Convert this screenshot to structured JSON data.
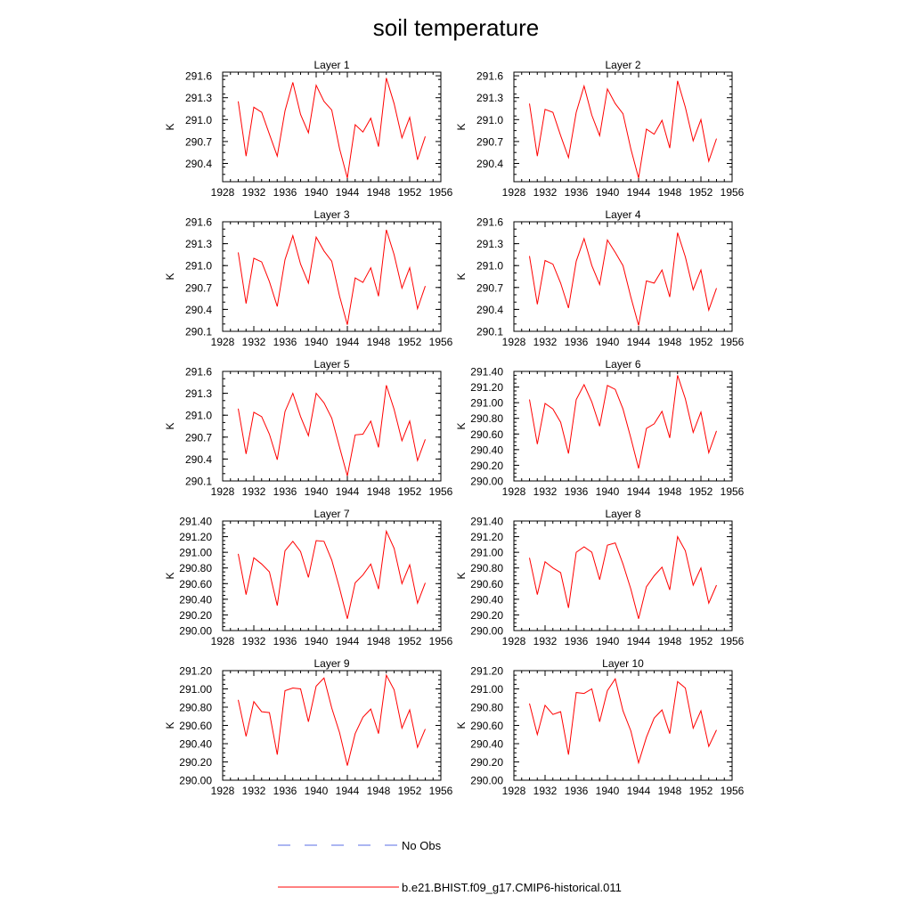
{
  "title": "soil temperature",
  "colors": {
    "model": "#ff0000",
    "obs": "#5a6ee6",
    "axis": "#000000"
  },
  "legend": {
    "obs_label": "No Obs",
    "model_label": "b.e21.BHIST.f09_g17.CMIP6-historical.011"
  },
  "chart_data": [
    {
      "type": "line",
      "title": "Layer 1",
      "xlabel": "",
      "ylabel": "K",
      "xlim": [
        1928,
        1956
      ],
      "xticks": [
        1928,
        1932,
        1936,
        1940,
        1944,
        1948,
        1952,
        1956
      ],
      "ylim": [
        290.15,
        291.65
      ],
      "yticks": [
        "291.6",
        "291.3",
        "291.0",
        "290.7",
        "290.4"
      ],
      "series": [
        {
          "x": [
            1930,
            1931,
            1932,
            1933,
            1934,
            1935,
            1936,
            1937,
            1938,
            1939,
            1940,
            1941,
            1942,
            1943,
            1944,
            1945,
            1946,
            1947,
            1948,
            1949,
            1950,
            1951,
            1952,
            1953,
            1954
          ],
          "values": [
            291.25,
            290.5,
            291.17,
            291.1,
            290.8,
            290.5,
            291.12,
            291.51,
            291.07,
            290.82,
            291.47,
            291.25,
            291.13,
            290.6,
            290.2,
            290.93,
            290.83,
            291.02,
            290.63,
            291.57,
            291.22,
            290.75,
            291.03,
            290.45,
            290.77
          ]
        }
      ]
    },
    {
      "type": "line",
      "title": "Layer 2",
      "xlabel": "",
      "ylabel": "K",
      "xlim": [
        1928,
        1956
      ],
      "xticks": [
        1928,
        1932,
        1936,
        1940,
        1944,
        1948,
        1952,
        1956
      ],
      "ylim": [
        290.15,
        291.65
      ],
      "yticks": [
        "291.6",
        "291.3",
        "291.0",
        "290.7",
        "290.4"
      ],
      "series": [
        {
          "x": [
            1930,
            1931,
            1932,
            1933,
            1934,
            1935,
            1936,
            1937,
            1938,
            1939,
            1940,
            1941,
            1942,
            1943,
            1944,
            1945,
            1946,
            1947,
            1948,
            1949,
            1950,
            1951,
            1952,
            1953,
            1954
          ],
          "values": [
            291.22,
            290.5,
            291.14,
            291.1,
            290.78,
            290.48,
            291.1,
            291.46,
            291.06,
            290.78,
            291.42,
            291.22,
            291.08,
            290.6,
            290.2,
            290.87,
            290.8,
            290.99,
            290.61,
            291.53,
            291.17,
            290.71,
            291.0,
            290.43,
            290.74
          ]
        }
      ]
    },
    {
      "type": "line",
      "title": "Layer 3",
      "xlabel": "",
      "ylabel": "K",
      "xlim": [
        1928,
        1956
      ],
      "xticks": [
        1928,
        1932,
        1936,
        1940,
        1944,
        1948,
        1952,
        1956
      ],
      "ylim": [
        290.1,
        291.6
      ],
      "yticks": [
        "291.6",
        "291.3",
        "291.0",
        "290.7",
        "290.4",
        "290.1"
      ],
      "series": [
        {
          "x": [
            1930,
            1931,
            1932,
            1933,
            1934,
            1935,
            1936,
            1937,
            1938,
            1939,
            1940,
            1941,
            1942,
            1943,
            1944,
            1945,
            1946,
            1947,
            1948,
            1949,
            1950,
            1951,
            1952,
            1953,
            1954
          ],
          "values": [
            291.18,
            290.48,
            291.1,
            291.05,
            290.78,
            290.44,
            291.08,
            291.41,
            291.02,
            290.76,
            291.39,
            291.2,
            291.06,
            290.58,
            290.19,
            290.83,
            290.77,
            290.97,
            290.58,
            291.49,
            291.15,
            290.69,
            290.97,
            290.41,
            290.72
          ]
        }
      ]
    },
    {
      "type": "line",
      "title": "Layer 4",
      "xlabel": "",
      "ylabel": "K",
      "xlim": [
        1928,
        1956
      ],
      "xticks": [
        1928,
        1932,
        1936,
        1940,
        1944,
        1948,
        1952,
        1956
      ],
      "ylim": [
        290.1,
        291.6
      ],
      "yticks": [
        "291.6",
        "291.3",
        "291.0",
        "290.7",
        "290.4",
        "290.1"
      ],
      "series": [
        {
          "x": [
            1930,
            1931,
            1932,
            1933,
            1934,
            1935,
            1936,
            1937,
            1938,
            1939,
            1940,
            1941,
            1942,
            1943,
            1944,
            1945,
            1946,
            1947,
            1948,
            1949,
            1950,
            1951,
            1952,
            1953,
            1954
          ],
          "values": [
            291.13,
            290.47,
            291.07,
            291.02,
            290.76,
            290.42,
            291.06,
            291.37,
            291.0,
            290.74,
            291.35,
            291.18,
            291.0,
            290.57,
            290.18,
            290.79,
            290.76,
            290.94,
            290.57,
            291.45,
            291.12,
            290.67,
            290.94,
            290.39,
            290.69
          ]
        }
      ]
    },
    {
      "type": "line",
      "title": "Layer 5",
      "xlabel": "",
      "ylabel": "K",
      "xlim": [
        1928,
        1956
      ],
      "xticks": [
        1928,
        1932,
        1936,
        1940,
        1944,
        1948,
        1952,
        1956
      ],
      "ylim": [
        290.1,
        291.6
      ],
      "yticks": [
        "291.6",
        "291.3",
        "291.0",
        "290.7",
        "290.4",
        "290.1"
      ],
      "series": [
        {
          "x": [
            1930,
            1931,
            1932,
            1933,
            1934,
            1935,
            1936,
            1937,
            1938,
            1939,
            1940,
            1941,
            1942,
            1943,
            1944,
            1945,
            1946,
            1947,
            1948,
            1949,
            1950,
            1951,
            1952,
            1953,
            1954
          ],
          "values": [
            291.09,
            290.47,
            291.04,
            290.98,
            290.74,
            290.39,
            291.05,
            291.3,
            290.98,
            290.72,
            291.3,
            291.17,
            290.96,
            290.56,
            290.17,
            290.73,
            290.74,
            290.92,
            290.56,
            291.41,
            291.08,
            290.65,
            290.92,
            290.38,
            290.67
          ]
        }
      ]
    },
    {
      "type": "line",
      "title": "Layer 6",
      "xlabel": "",
      "ylabel": "K",
      "xlim": [
        1928,
        1956
      ],
      "xticks": [
        1928,
        1932,
        1936,
        1940,
        1944,
        1948,
        1952,
        1956
      ],
      "ylim": [
        290.0,
        291.4
      ],
      "yticks": [
        "291.40",
        "291.20",
        "291.00",
        "290.80",
        "290.60",
        "290.40",
        "290.20",
        "290.00"
      ],
      "series": [
        {
          "x": [
            1930,
            1931,
            1932,
            1933,
            1934,
            1935,
            1936,
            1937,
            1938,
            1939,
            1940,
            1941,
            1942,
            1943,
            1944,
            1945,
            1946,
            1947,
            1948,
            1949,
            1950,
            1951,
            1952,
            1953,
            1954
          ],
          "values": [
            291.04,
            290.47,
            290.99,
            290.92,
            290.75,
            290.35,
            291.04,
            291.23,
            291.01,
            290.7,
            291.22,
            291.17,
            290.92,
            290.55,
            290.16,
            290.67,
            290.73,
            290.89,
            290.55,
            291.35,
            291.05,
            290.62,
            290.88,
            290.36,
            290.64
          ]
        }
      ]
    },
    {
      "type": "line",
      "title": "Layer 7",
      "xlabel": "",
      "ylabel": "K",
      "xlim": [
        1928,
        1956
      ],
      "xticks": [
        1928,
        1932,
        1936,
        1940,
        1944,
        1948,
        1952,
        1956
      ],
      "ylim": [
        290.0,
        291.4
      ],
      "yticks": [
        "291.40",
        "291.20",
        "291.00",
        "290.80",
        "290.60",
        "290.40",
        "290.20",
        "290.00"
      ],
      "series": [
        {
          "x": [
            1930,
            1931,
            1932,
            1933,
            1934,
            1935,
            1936,
            1937,
            1938,
            1939,
            1940,
            1941,
            1942,
            1943,
            1944,
            1945,
            1946,
            1947,
            1948,
            1949,
            1950,
            1951,
            1952,
            1953,
            1954
          ],
          "values": [
            290.98,
            290.46,
            290.93,
            290.85,
            290.75,
            290.32,
            291.02,
            291.14,
            291.01,
            290.68,
            291.15,
            291.14,
            290.9,
            290.54,
            290.15,
            290.61,
            290.71,
            290.85,
            290.53,
            291.27,
            291.05,
            290.6,
            290.84,
            290.35,
            290.61
          ]
        }
      ]
    },
    {
      "type": "line",
      "title": "Layer 8",
      "xlabel": "",
      "ylabel": "K",
      "xlim": [
        1928,
        1956
      ],
      "xticks": [
        1928,
        1932,
        1936,
        1940,
        1944,
        1948,
        1952,
        1956
      ],
      "ylim": [
        290.0,
        291.4
      ],
      "yticks": [
        "291.40",
        "291.20",
        "291.00",
        "290.80",
        "290.60",
        "290.40",
        "290.20",
        "290.00"
      ],
      "series": [
        {
          "x": [
            1930,
            1931,
            1932,
            1933,
            1934,
            1935,
            1936,
            1937,
            1938,
            1939,
            1940,
            1941,
            1942,
            1943,
            1944,
            1945,
            1946,
            1947,
            1948,
            1949,
            1950,
            1951,
            1952,
            1953,
            1954
          ],
          "values": [
            290.93,
            290.46,
            290.88,
            290.8,
            290.74,
            290.29,
            291.0,
            291.07,
            291.0,
            290.65,
            291.09,
            291.12,
            290.85,
            290.53,
            290.15,
            290.56,
            290.7,
            290.81,
            290.52,
            291.2,
            291.02,
            290.58,
            290.8,
            290.35,
            290.58
          ]
        }
      ]
    },
    {
      "type": "line",
      "title": "Layer 9",
      "xlabel": "",
      "ylabel": "K",
      "xlim": [
        1928,
        1956
      ],
      "xticks": [
        1928,
        1932,
        1936,
        1940,
        1944,
        1948,
        1952,
        1956
      ],
      "ylim": [
        290.0,
        291.2
      ],
      "yticks": [
        "291.20",
        "291.00",
        "290.80",
        "290.60",
        "290.40",
        "290.20",
        "290.00"
      ],
      "series": [
        {
          "x": [
            1930,
            1931,
            1932,
            1933,
            1934,
            1935,
            1936,
            1937,
            1938,
            1939,
            1940,
            1941,
            1942,
            1943,
            1944,
            1945,
            1946,
            1947,
            1948,
            1949,
            1950,
            1951,
            1952,
            1953,
            1954
          ],
          "values": [
            290.88,
            290.48,
            290.86,
            290.75,
            290.74,
            290.28,
            290.98,
            291.01,
            291.0,
            290.64,
            291.03,
            291.12,
            290.79,
            290.52,
            290.16,
            290.51,
            290.69,
            290.78,
            290.51,
            291.15,
            290.99,
            290.57,
            290.77,
            290.36,
            290.56
          ]
        }
      ]
    },
    {
      "type": "line",
      "title": "Layer 10",
      "xlabel": "",
      "ylabel": "K",
      "xlim": [
        1928,
        1956
      ],
      "xticks": [
        1928,
        1932,
        1936,
        1940,
        1944,
        1948,
        1952,
        1956
      ],
      "ylim": [
        290.0,
        291.2
      ],
      "yticks": [
        "291.20",
        "291.00",
        "290.80",
        "290.60",
        "290.40",
        "290.20",
        "290.00"
      ],
      "series": [
        {
          "x": [
            1930,
            1931,
            1932,
            1933,
            1934,
            1935,
            1936,
            1937,
            1938,
            1939,
            1940,
            1941,
            1942,
            1943,
            1944,
            1945,
            1946,
            1947,
            1948,
            1949,
            1950,
            1951,
            1952,
            1953,
            1954
          ],
          "values": [
            290.84,
            290.5,
            290.82,
            290.72,
            290.75,
            290.28,
            290.96,
            290.95,
            291.0,
            290.64,
            290.98,
            291.11,
            290.76,
            290.54,
            290.19,
            290.47,
            290.68,
            290.77,
            290.51,
            291.08,
            291.01,
            290.57,
            290.76,
            290.37,
            290.55
          ]
        }
      ]
    }
  ]
}
